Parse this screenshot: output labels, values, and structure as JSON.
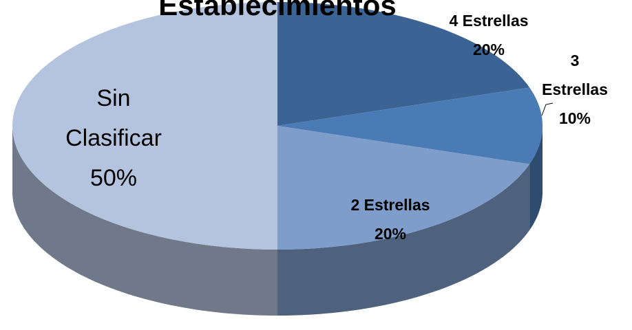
{
  "chart_data": {
    "type": "pie",
    "title": "Establecimientos",
    "categories": [
      "4 Estrellas",
      "3 Estrellas",
      "2 Estrellas",
      "Sin Clasificar"
    ],
    "values": [
      20,
      10,
      20,
      50
    ],
    "value_labels": [
      "20%",
      "10%",
      "20%",
      "50%"
    ],
    "colors": [
      "#3b6393",
      "#4a7bb5",
      "#7e9dca",
      "#b4c4de"
    ]
  }
}
